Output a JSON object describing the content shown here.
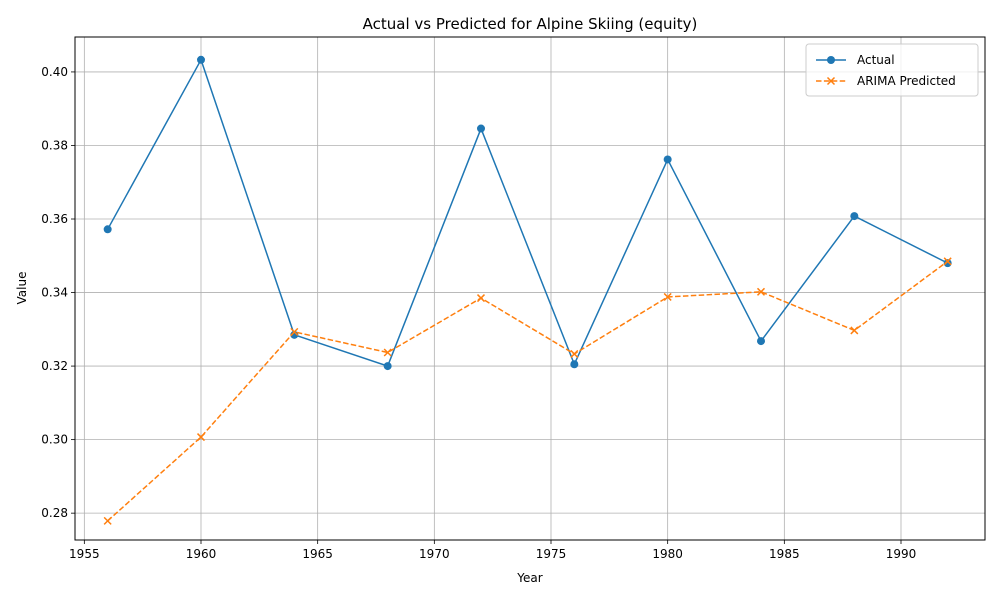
{
  "chart_data": {
    "type": "line",
    "title": "Actual vs Predicted for Alpine Skiing (equity)",
    "xlabel": "Year",
    "ylabel": "Value",
    "xlim": [
      1954.6,
      1993.6
    ],
    "ylim": [
      0.2727,
      0.4095
    ],
    "xticks": [
      1955,
      1960,
      1965,
      1970,
      1975,
      1980,
      1985,
      1990
    ],
    "yticks": [
      0.28,
      0.3,
      0.32,
      0.34,
      0.36,
      0.38,
      0.4
    ],
    "xtick_labels": [
      "1955",
      "1960",
      "1965",
      "1970",
      "1975",
      "1980",
      "1985",
      "1990"
    ],
    "ytick_labels": [
      "0.28",
      "0.30",
      "0.32",
      "0.34",
      "0.36",
      "0.38",
      "0.40"
    ],
    "grid": true,
    "legend_position": "upper right",
    "x": [
      1956,
      1960,
      1964,
      1968,
      1972,
      1976,
      1980,
      1984,
      1988,
      1992
    ],
    "series": [
      {
        "name": "Actual",
        "color": "#1f77b4",
        "line_style": "solid",
        "marker": "circle",
        "values": [
          0.3572,
          0.4033,
          0.3285,
          0.32,
          0.3846,
          0.3205,
          0.3762,
          0.3268,
          0.3608,
          0.348
        ]
      },
      {
        "name": "ARIMA Predicted",
        "color": "#ff7f0e",
        "line_style": "dashed",
        "marker": "x",
        "values": [
          0.2779,
          0.3007,
          0.3293,
          0.3237,
          0.3385,
          0.3233,
          0.3388,
          0.3402,
          0.3297,
          0.3485
        ]
      }
    ]
  }
}
